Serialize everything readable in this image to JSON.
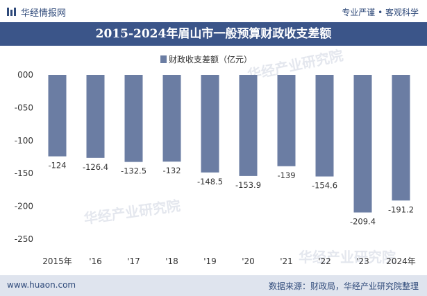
{
  "header": {
    "brand": "华经情报网",
    "tagline": "专业严谨 • 客观科学"
  },
  "chart_data": {
    "type": "bar",
    "title": "2015-2024年眉山市一般预算财政收支差额",
    "legend": "财政收支差额（亿元）",
    "legend_position": "top-center",
    "categories": [
      "2015年",
      "'16",
      "'17",
      "'18",
      "'19",
      "'20",
      "'21",
      "'22",
      "'23",
      "2024年"
    ],
    "series": [
      {
        "name": "财政收支差额（亿元）",
        "values": [
          -124,
          -126.4,
          -132.5,
          -132,
          -148.5,
          -153.9,
          -139,
          -154.6,
          -209.4,
          -191.2
        ]
      }
    ],
    "data_labels": [
      "-124",
      "-126.4",
      "-132.5",
      "-132",
      "-148.5",
      "-153.9",
      "-139",
      "-154.6",
      "-209.4",
      "-191.2"
    ],
    "yticks": [
      "000",
      "-050",
      "-100",
      "-150",
      "-200",
      "-250"
    ],
    "ylim": [
      -250,
      0
    ],
    "grid": false,
    "bar_color": "#6b7da3"
  },
  "watermark": "华经产业研究院",
  "footer": {
    "website": "www.huaon.com",
    "source": "数据来源：财政局，华经产业研究院整理"
  }
}
